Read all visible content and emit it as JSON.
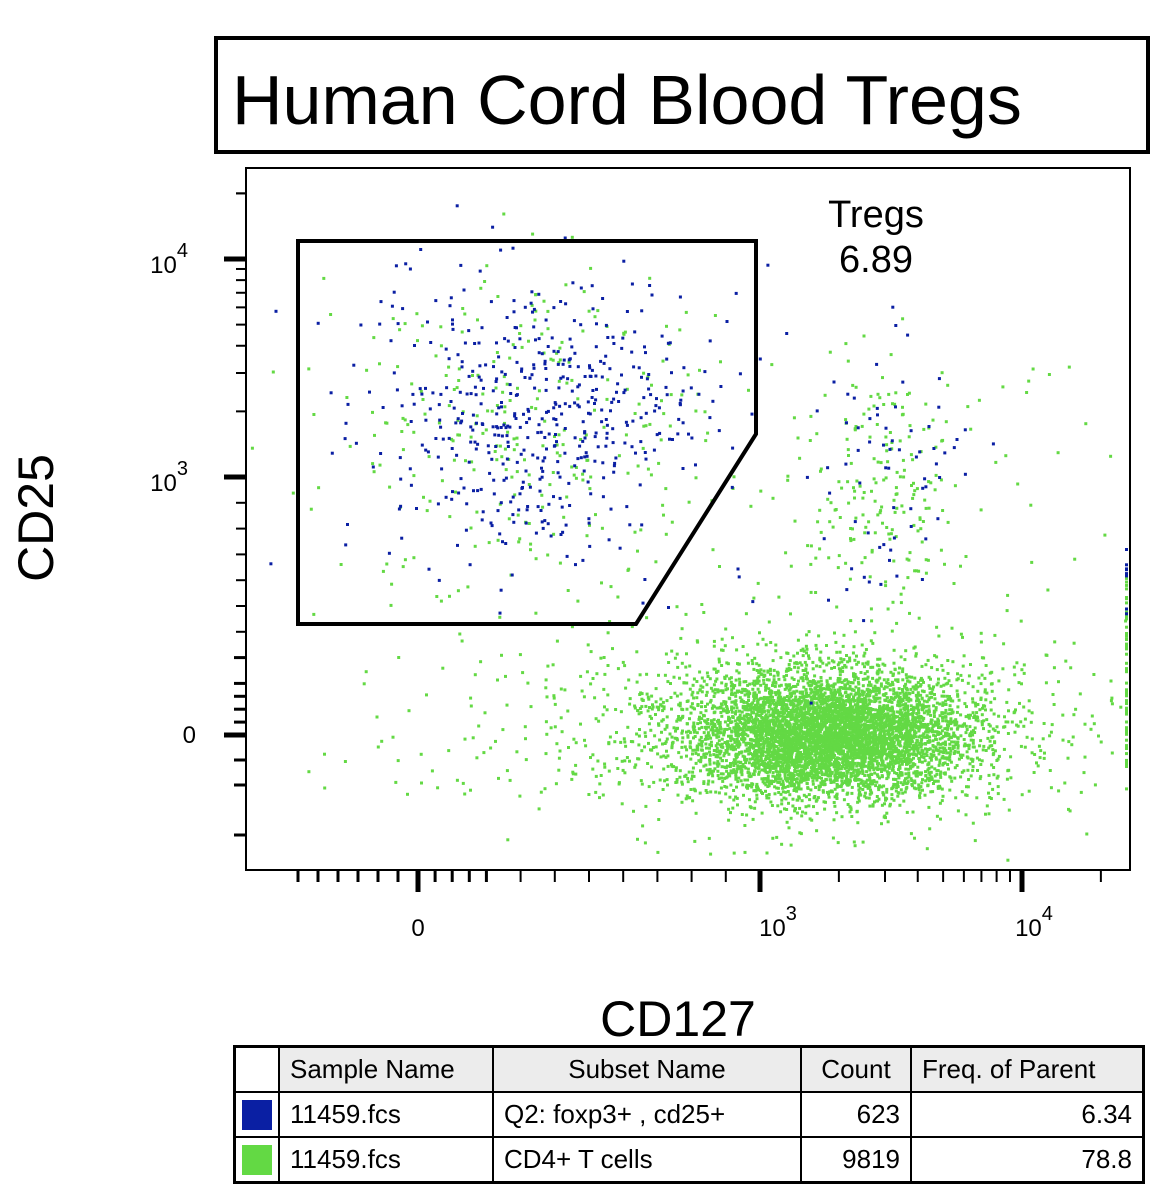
{
  "title": "Human Cord Blood Tregs",
  "axes": {
    "x_label": "CD127",
    "y_label": "CD25",
    "x_ticks": [
      {
        "value": "0",
        "label": "0",
        "sup": ""
      },
      {
        "value": "1000",
        "label": "10",
        "sup": "3"
      },
      {
        "value": "10000",
        "label": "10",
        "sup": "4"
      }
    ],
    "y_ticks": [
      {
        "value": "0",
        "label": "0",
        "sup": ""
      },
      {
        "value": "1000",
        "label": "10",
        "sup": "3"
      },
      {
        "value": "10000",
        "label": "10",
        "sup": "4"
      }
    ]
  },
  "chart_data": {
    "type": "scatter",
    "title": "Human Cord Blood Tregs",
    "xlabel": "CD127",
    "ylabel": "CD25",
    "x_scale": "biexponential",
    "y_scale": "biexponential",
    "gate": {
      "name": "Tregs",
      "frequency": "6.89",
      "vertices": [
        [
          -150,
          14000
        ],
        [
          900,
          14000
        ],
        [
          900,
          1500
        ],
        [
          360,
          300
        ],
        [
          -150,
          300
        ]
      ]
    },
    "series": [
      {
        "name": "Q2: foxp3+ , cd25+",
        "sample": "11459.fcs",
        "count": 623,
        "freq_of_parent": "6.34",
        "color": "#0a1fa3",
        "center": {
          "x": 180,
          "y": 2200
        },
        "spread": "x 40-1000, y 250-9000"
      },
      {
        "name": "CD4+ T cells",
        "sample": "11459.fcs",
        "count": 9819,
        "freq_of_parent": "78.8",
        "color": "#63d944",
        "center": {
          "x": 1400,
          "y": 0
        },
        "spread": "x 200-12000, y -100 to 150"
      }
    ]
  },
  "gate_label": {
    "name": "Tregs",
    "value": "6.89"
  },
  "legend": {
    "headers": {
      "sample": "Sample Name",
      "subset": "Subset Name",
      "count": "Count",
      "freq": "Freq. of Parent"
    },
    "rows": [
      {
        "color": "#0a1fa3",
        "sample": "11459.fcs",
        "subset": "Q2: foxp3+ , cd25+",
        "count": "623",
        "freq": "6.34"
      },
      {
        "color": "#63d944",
        "sample": "11459.fcs",
        "subset": "CD4+ T cells",
        "count": "9819",
        "freq": "78.8"
      }
    ]
  }
}
